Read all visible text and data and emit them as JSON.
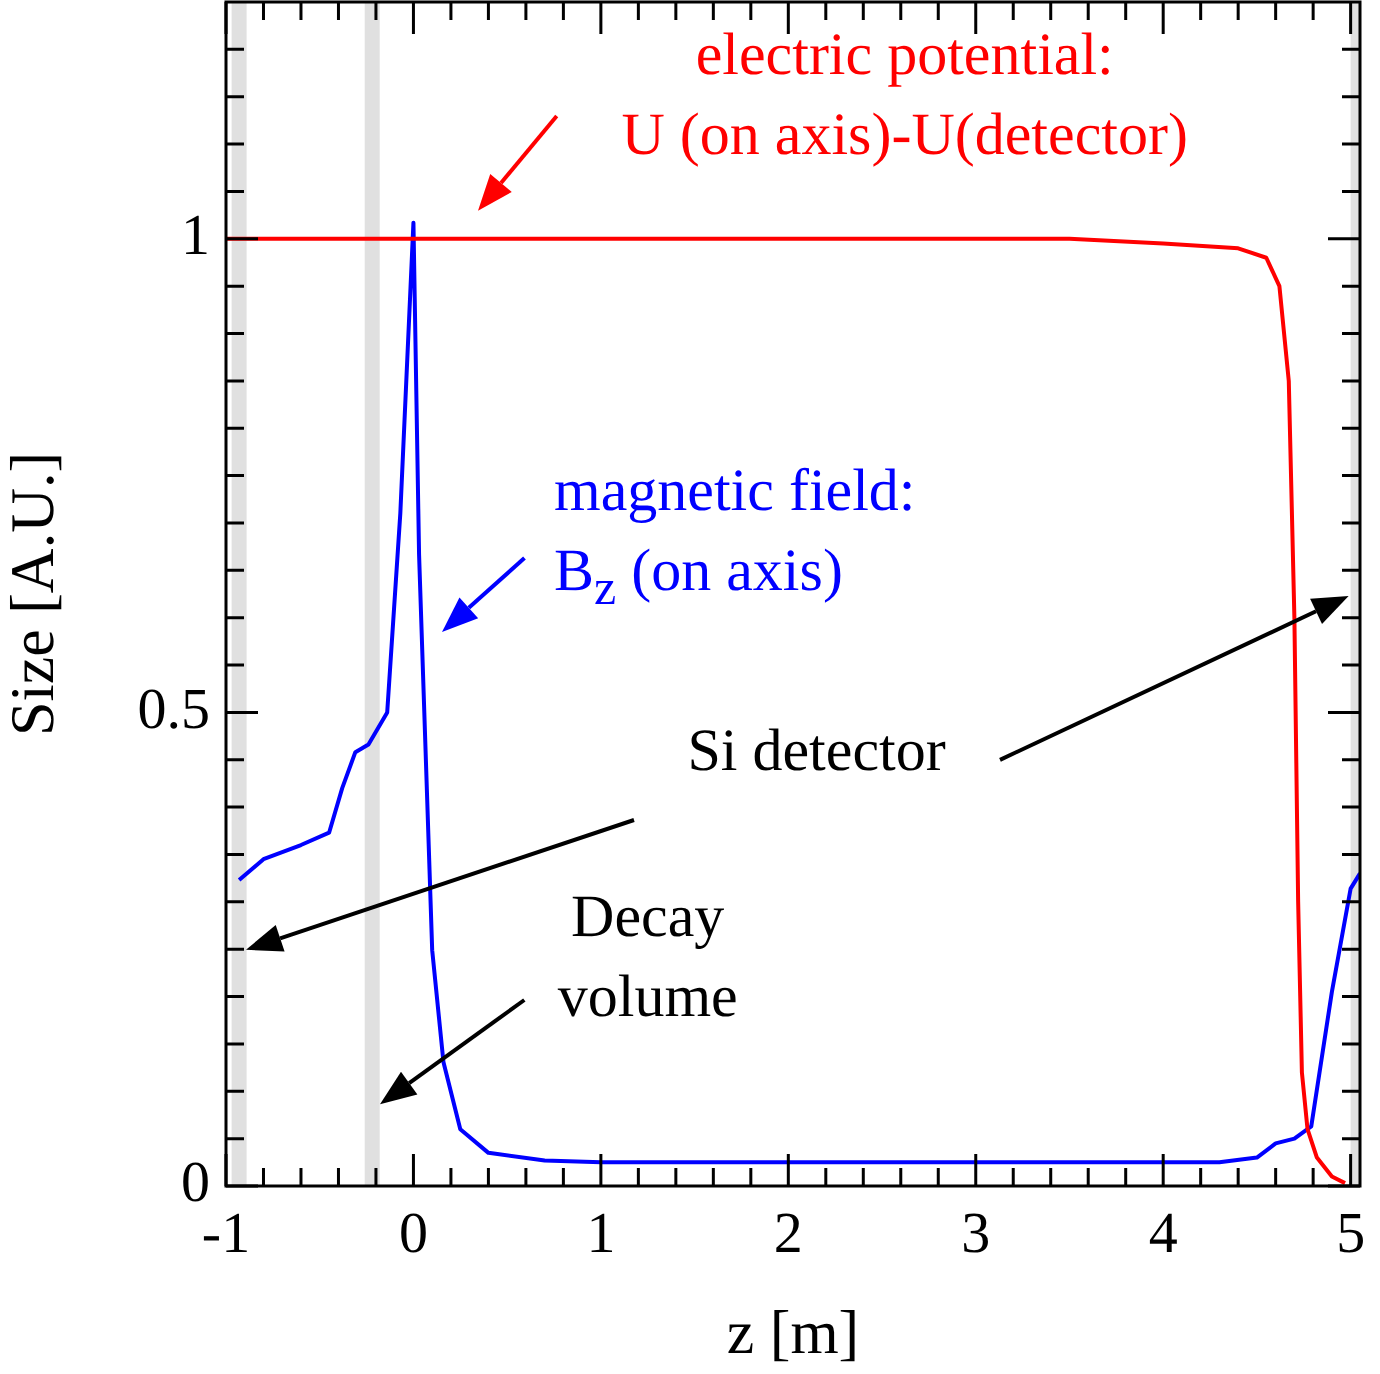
{
  "chart_data": {
    "type": "line",
    "xlabel": "z [m]",
    "ylabel": "Size [A.U.]",
    "xlim": [
      -1,
      5.05
    ],
    "ylim": [
      0,
      1.25
    ],
    "xticks": [
      -1,
      {
        "value": -0.8,
        "label": null
      },
      {
        "value": -0.6,
        "label": null
      },
      {
        "value": -0.4,
        "label": null
      },
      {
        "value": -0.2,
        "label": null
      },
      0,
      {
        "value": 0.2,
        "label": null
      },
      {
        "value": 0.4,
        "label": null
      },
      {
        "value": 0.6,
        "label": null
      },
      {
        "value": 0.8,
        "label": null
      },
      1,
      {
        "value": 1.2,
        "label": null
      },
      {
        "value": 1.4,
        "label": null
      },
      {
        "value": 1.6,
        "label": null
      },
      {
        "value": 1.8,
        "label": null
      },
      2,
      {
        "value": 2.2,
        "label": null
      },
      {
        "value": 2.4,
        "label": null
      },
      {
        "value": 2.6,
        "label": null
      },
      {
        "value": 2.8,
        "label": null
      },
      3,
      {
        "value": 3.2,
        "label": null
      },
      {
        "value": 3.4,
        "label": null
      },
      {
        "value": 3.6,
        "label": null
      },
      {
        "value": 3.8,
        "label": null
      },
      4,
      {
        "value": 4.2,
        "label": null
      },
      {
        "value": 4.4,
        "label": null
      },
      {
        "value": 4.6,
        "label": null
      },
      {
        "value": 4.8,
        "label": null
      },
      5
    ],
    "yticks": [
      0,
      {
        "value": 0.05,
        "label": null
      },
      {
        "value": 0.1,
        "label": null
      },
      {
        "value": 0.15,
        "label": null
      },
      {
        "value": 0.2,
        "label": null
      },
      {
        "value": 0.25,
        "label": null
      },
      {
        "value": 0.3,
        "label": null
      },
      {
        "value": 0.35,
        "label": null
      },
      {
        "value": 0.4,
        "label": null
      },
      {
        "value": 0.45,
        "label": null
      },
      0.5,
      {
        "value": 0.55,
        "label": null
      },
      {
        "value": 0.6,
        "label": null
      },
      {
        "value": 0.65,
        "label": null
      },
      {
        "value": 0.7,
        "label": null
      },
      {
        "value": 0.75,
        "label": null
      },
      {
        "value": 0.8,
        "label": null
      },
      {
        "value": 0.85,
        "label": null
      },
      {
        "value": 0.9,
        "label": null
      },
      {
        "value": 0.95,
        "label": null
      },
      1,
      {
        "value": 1.05,
        "label": null
      },
      {
        "value": 1.1,
        "label": null
      },
      {
        "value": 1.15,
        "label": null
      },
      {
        "value": 1.2,
        "label": null
      }
    ],
    "grid": false,
    "legend": false,
    "marker": "none",
    "line_style": "solid",
    "series": [
      {
        "name": "electric potential:\nU (on axis)-U(detector)",
        "color": "#ff0000",
        "x": [
          -1,
          3.5,
          4.0,
          4.4,
          4.55,
          4.62,
          4.67,
          4.7,
          4.72,
          4.74,
          4.77,
          4.82,
          4.9,
          4.97
        ],
        "values": [
          1,
          1,
          0.995,
          0.99,
          0.98,
          0.95,
          0.85,
          0.6,
          0.3,
          0.12,
          0.06,
          0.03,
          0.01,
          0.003
        ]
      },
      {
        "name": "magnetic field:\nB$_{z}$ (on axis)",
        "color": "#0000ff",
        "x": [
          -0.93,
          -0.8,
          -0.6,
          -0.45,
          -0.38,
          -0.31,
          -0.24,
          -0.14,
          -0.07,
          0,
          0.03,
          0.1,
          0.16,
          0.25,
          0.4,
          0.7,
          1,
          2,
          3,
          4,
          4.3,
          4.5,
          4.6,
          4.7,
          4.79,
          4.9,
          5.0,
          5.05
        ],
        "values": [
          0.323,
          0.345,
          0.36,
          0.373,
          0.42,
          0.458,
          0.466,
          0.5,
          0.71,
          1.017,
          0.667,
          0.249,
          0.131,
          0.06,
          0.035,
          0.027,
          0.025,
          0.025,
          0.025,
          0.025,
          0.025,
          0.03,
          0.045,
          0.05,
          0.063,
          0.205,
          0.314,
          0.33
        ]
      }
    ],
    "bands": [
      {
        "axis": "x",
        "from": -0.97,
        "to": -0.89,
        "color": "#e0e0e0"
      },
      {
        "axis": "x",
        "from": -0.26,
        "to": -0.18,
        "color": "#e0e0e0"
      },
      {
        "axis": "x",
        "from": 5.0,
        "to": 5.05,
        "color": "#e0e0e0"
      }
    ],
    "annotations": [
      "Si detector",
      "Decay\nvolume"
    ]
  }
}
